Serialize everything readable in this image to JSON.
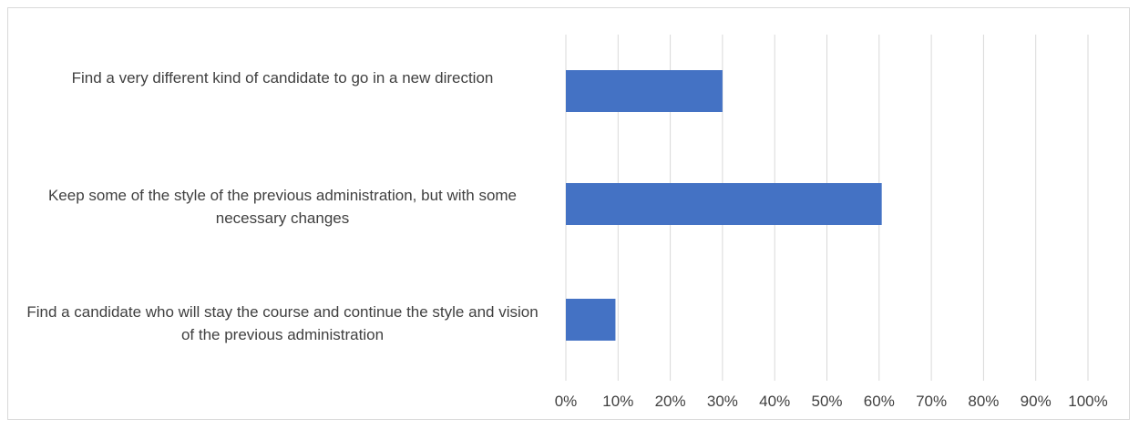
{
  "chart_data": {
    "type": "bar",
    "orientation": "horizontal",
    "categories": [
      "Find a very different kind of candidate to go in a new direction",
      "Keep some of the style of the previous administration, but with some necessary changes",
      "Find a candidate who will stay the course and continue the style and vision of the previous administration"
    ],
    "values": [
      30,
      60.5,
      9.5
    ],
    "title": "",
    "xlabel": "",
    "ylabel": "",
    "xlim": [
      0,
      100
    ],
    "x_ticks": [
      "0%",
      "10%",
      "20%",
      "30%",
      "40%",
      "50%",
      "60%",
      "70%",
      "80%",
      "90%",
      "100%"
    ],
    "grid": true,
    "legend": "none",
    "bar_color": "#4472c4",
    "grid_color": "#d9d9d9"
  }
}
